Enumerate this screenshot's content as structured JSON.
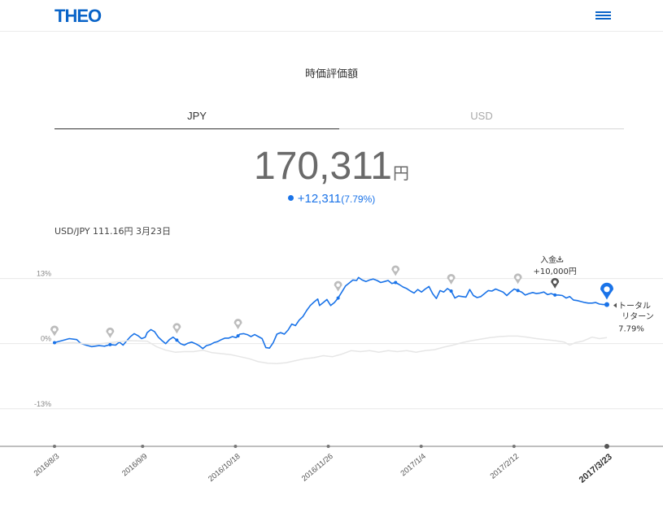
{
  "header": {
    "logo": "THEO",
    "menu_icon": "hamburger-menu-icon"
  },
  "section_title": "時価評価額",
  "tabs": [
    {
      "label": "JPY",
      "active": true
    },
    {
      "label": "USD",
      "active": false
    }
  ],
  "valuation": {
    "amount": "170,311",
    "unit": "円",
    "gain_amount": "+12,311",
    "gain_percent": "(7.79%)"
  },
  "fx_rate": "USD/JPY 111.16円 3月23日",
  "colors": {
    "accent": "#1a73e8",
    "logo": "#0a64c8",
    "benchmark": "#e6e6e6",
    "pin_grey": "#bbbbbb",
    "pin_dark": "#555555"
  },
  "chart_data": {
    "type": "line",
    "y_tick_labels": [
      "13%",
      "0%",
      "-13%"
    ],
    "y_ticks": [
      13,
      0,
      -13
    ],
    "ylim": [
      -20.5,
      16.5
    ],
    "x_tick_labels": [
      "2016/8/3",
      "2016/9/9",
      "2016/10/18",
      "2016/11/26",
      "2017/1/4",
      "2017/2/12",
      "2017/3/23"
    ],
    "x_tick_day_index": [
      0,
      37,
      76,
      115,
      154,
      193,
      232
    ],
    "series": [
      {
        "role": "portfolio",
        "color": "#1a73e8",
        "points": [
          [
            0,
            0.2
          ],
          [
            4,
            0.6
          ],
          [
            8,
            1.0
          ],
          [
            12,
            0.8
          ],
          [
            14,
            0.1
          ],
          [
            17,
            -0.3
          ],
          [
            20,
            -0.6
          ],
          [
            24,
            -0.4
          ],
          [
            27,
            -0.5
          ],
          [
            30,
            -0.2
          ],
          [
            33,
            -0.3
          ],
          [
            35,
            0.3
          ],
          [
            37,
            -0.3
          ],
          [
            39,
            0.6
          ],
          [
            41,
            1.4
          ],
          [
            43,
            2.0
          ],
          [
            45,
            1.6
          ],
          [
            47,
            1.0
          ],
          [
            49,
            1.3
          ],
          [
            50,
            2.2
          ],
          [
            52,
            2.8
          ],
          [
            54,
            2.4
          ],
          [
            56,
            1.3
          ],
          [
            58,
            0.6
          ],
          [
            60,
            0.0
          ],
          [
            62,
            0.8
          ],
          [
            64,
            1.3
          ],
          [
            66,
            0.7
          ],
          [
            68,
            0.0
          ],
          [
            70,
            -0.3
          ],
          [
            72,
            0.1
          ],
          [
            74,
            0.3
          ],
          [
            76,
            0.0
          ],
          [
            78,
            -0.4
          ],
          [
            80,
            -1.0
          ],
          [
            82,
            -0.4
          ],
          [
            84,
            -0.2
          ],
          [
            86,
            0.2
          ],
          [
            88,
            0.4
          ],
          [
            90,
            0.8
          ],
          [
            92,
            1.1
          ],
          [
            94,
            1.1
          ],
          [
            96,
            1.4
          ],
          [
            98,
            1.2
          ],
          [
            100,
            1.9
          ],
          [
            102,
            2.0
          ],
          [
            104,
            1.8
          ],
          [
            106,
            1.4
          ],
          [
            108,
            1.8
          ],
          [
            110,
            1.4
          ],
          [
            112,
            1.0
          ],
          [
            114,
            -0.8
          ],
          [
            116,
            -0.9
          ],
          [
            118,
            0.2
          ],
          [
            120,
            1.9
          ],
          [
            122,
            2.2
          ],
          [
            124,
            1.9
          ],
          [
            126,
            2.7
          ],
          [
            128,
            3.9
          ],
          [
            130,
            3.6
          ],
          [
            132,
            4.7
          ],
          [
            134,
            5.4
          ],
          [
            136,
            6.6
          ],
          [
            138,
            7.6
          ],
          [
            140,
            8.3
          ],
          [
            142,
            8.9
          ],
          [
            143,
            7.6
          ],
          [
            145,
            8.2
          ],
          [
            147,
            8.8
          ],
          [
            149,
            7.6
          ],
          [
            151,
            8.2
          ],
          [
            153,
            9.1
          ],
          [
            155,
            10.3
          ],
          [
            157,
            11.5
          ],
          [
            159,
            12.1
          ],
          [
            161,
            12.7
          ],
          [
            163,
            12.6
          ],
          [
            164,
            13.2
          ],
          [
            166,
            12.7
          ],
          [
            168,
            12.4
          ],
          [
            170,
            12.7
          ],
          [
            172,
            12.9
          ],
          [
            174,
            12.6
          ],
          [
            176,
            12.2
          ],
          [
            178,
            12.4
          ],
          [
            180,
            12.6
          ],
          [
            182,
            12.0
          ],
          [
            184,
            12.2
          ],
          [
            186,
            11.8
          ],
          [
            188,
            11.3
          ],
          [
            190,
            11.0
          ],
          [
            192,
            10.5
          ],
          [
            194,
            10.1
          ],
          [
            196,
            10.8
          ],
          [
            198,
            10.3
          ],
          [
            200,
            10.9
          ],
          [
            202,
            11.4
          ],
          [
            204,
            10.0
          ],
          [
            206,
            9.0
          ],
          [
            208,
            10.6
          ],
          [
            210,
            10.3
          ],
          [
            212,
            11.0
          ],
          [
            214,
            10.5
          ],
          [
            216,
            9.1
          ],
          [
            218,
            9.5
          ],
          [
            220,
            9.4
          ],
          [
            222,
            9.3
          ],
          [
            224,
            10.8
          ],
          [
            226,
            9.6
          ],
          [
            228,
            9.2
          ],
          [
            230,
            9.4
          ],
          [
            232,
            10.0
          ],
          [
            234,
            10.6
          ],
          [
            236,
            10.5
          ],
          [
            238,
            10.9
          ],
          [
            240,
            10.6
          ],
          [
            242,
            10.3
          ],
          [
            244,
            9.6
          ],
          [
            246,
            10.3
          ],
          [
            248,
            10.9
          ],
          [
            250,
            10.6
          ],
          [
            252,
            10.3
          ],
          [
            254,
            9.7
          ],
          [
            256,
            10.0
          ],
          [
            258,
            10.2
          ],
          [
            260,
            10.0
          ],
          [
            262,
            10.1
          ],
          [
            264,
            10.3
          ],
          [
            266,
            9.8
          ],
          [
            268,
            10.0
          ],
          [
            270,
            9.7
          ],
          [
            272,
            9.7
          ],
          [
            274,
            9.6
          ],
          [
            276,
            9.1
          ],
          [
            278,
            9.4
          ],
          [
            280,
            8.7
          ],
          [
            282,
            8.6
          ],
          [
            284,
            8.4
          ],
          [
            286,
            8.2
          ],
          [
            288,
            8.1
          ],
          [
            290,
            8.1
          ],
          [
            292,
            8.2
          ],
          [
            294,
            7.9
          ],
          [
            296,
            7.8
          ],
          [
            298,
            7.8
          ]
        ]
      },
      {
        "role": "benchmark",
        "color": "#e6e6e6",
        "points": [
          [
            0,
            0.0
          ],
          [
            10,
            0.2
          ],
          [
            20,
            -0.2
          ],
          [
            30,
            0.2
          ],
          [
            40,
            0.6
          ],
          [
            50,
            0.5
          ],
          [
            55,
            -0.6
          ],
          [
            60,
            -1.3
          ],
          [
            65,
            -1.7
          ],
          [
            70,
            -1.6
          ],
          [
            75,
            -1.6
          ],
          [
            80,
            -1.3
          ],
          [
            85,
            -1.8
          ],
          [
            90,
            -2.0
          ],
          [
            95,
            -2.2
          ],
          [
            100,
            -2.6
          ],
          [
            105,
            -3.0
          ],
          [
            110,
            -3.6
          ],
          [
            115,
            -3.9
          ],
          [
            120,
            -4.0
          ],
          [
            125,
            -3.8
          ],
          [
            130,
            -3.4
          ],
          [
            135,
            -3.0
          ],
          [
            140,
            -2.8
          ],
          [
            145,
            -2.4
          ],
          [
            150,
            -2.6
          ],
          [
            155,
            -2.1
          ],
          [
            160,
            -1.4
          ],
          [
            165,
            -1.6
          ],
          [
            170,
            -1.4
          ],
          [
            175,
            -1.7
          ],
          [
            180,
            -1.4
          ],
          [
            185,
            -1.6
          ],
          [
            190,
            -1.4
          ],
          [
            195,
            -1.7
          ],
          [
            200,
            -1.4
          ],
          [
            205,
            -1.2
          ],
          [
            210,
            -0.7
          ],
          [
            215,
            -0.3
          ],
          [
            220,
            0.2
          ],
          [
            225,
            0.6
          ],
          [
            230,
            0.9
          ],
          [
            235,
            1.2
          ],
          [
            240,
            1.4
          ],
          [
            245,
            1.5
          ],
          [
            250,
            1.5
          ],
          [
            255,
            1.3
          ],
          [
            260,
            1.0
          ],
          [
            265,
            0.8
          ],
          [
            270,
            0.6
          ],
          [
            275,
            0.3
          ],
          [
            278,
            -0.3
          ],
          [
            281,
            0.2
          ],
          [
            285,
            0.5
          ],
          [
            290,
            1.3
          ],
          [
            294,
            1.0
          ],
          [
            298,
            1.2
          ]
        ]
      }
    ],
    "event_markers_day_index": [
      0,
      30,
      66,
      99,
      153,
      184,
      214,
      250
    ],
    "deposit_marker": {
      "day_index": 270,
      "label": "入金",
      "amount": "+10,000円",
      "icon": "download-icon"
    },
    "current_marker": {
      "day_index": 298,
      "label_line1": "トータル",
      "label_line2": "リターン",
      "value": "7.79%"
    }
  }
}
